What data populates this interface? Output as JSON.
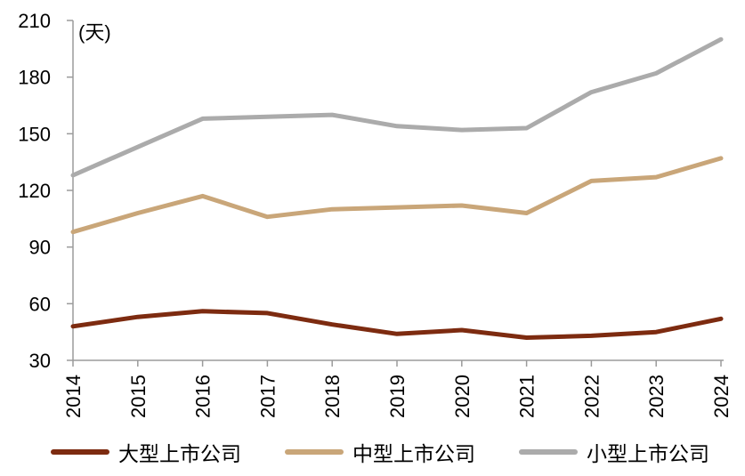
{
  "chart_data": {
    "type": "line",
    "title": "",
    "unit_label": "(天)",
    "x": [
      2014,
      2015,
      2016,
      2017,
      2018,
      2019,
      2020,
      2021,
      2022,
      2023,
      2024
    ],
    "series": [
      {
        "name": "大型上市公司",
        "color": "#7D2B10",
        "values": [
          48,
          53,
          56,
          55,
          49,
          44,
          46,
          42,
          43,
          45,
          52
        ]
      },
      {
        "name": "中型上市公司",
        "color": "#C9A679",
        "values": [
          98,
          108,
          117,
          106,
          110,
          111,
          112,
          108,
          125,
          127,
          137
        ]
      },
      {
        "name": "小型上市公司",
        "color": "#ABABAB",
        "values": [
          128,
          143,
          158,
          159,
          160,
          154,
          152,
          153,
          172,
          182,
          200
        ]
      }
    ],
    "ylim": [
      30,
      210
    ],
    "ytick_step": 30,
    "grid": false,
    "legend_position": "bottom",
    "axis_color": "#9B9B9B",
    "text_color": "#000000",
    "line_width": 5
  }
}
